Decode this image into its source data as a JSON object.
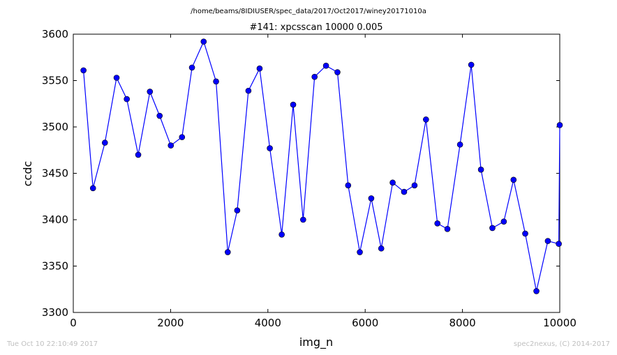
{
  "page": {
    "suptitle": "/home/beams/8IDIUSER/spec_data/2017/Oct2017/winey20171010a",
    "timestamp": "Tue Oct 10 22:10:49 2017",
    "credit": "spec2nexus, (C) 2014-2017"
  },
  "colors": {
    "series": "#0000ff",
    "marker": "#0000ff",
    "marker_edge": "#000000"
  },
  "chart_data": {
    "type": "line",
    "title": "#141: xpcsscan 10000 0.005",
    "xlabel": "img_n",
    "ylabel": "ccdc",
    "xlim": [
      0,
      10000
    ],
    "ylim": [
      3300,
      3600
    ],
    "xticks": [
      0,
      2000,
      4000,
      6000,
      8000,
      10000
    ],
    "yticks": [
      3300,
      3350,
      3400,
      3450,
      3500,
      3550,
      3600
    ],
    "grid": false,
    "markers": "circle",
    "x": [
      210,
      405,
      650,
      890,
      1100,
      1335,
      1575,
      1775,
      2005,
      2235,
      2440,
      2680,
      2935,
      3175,
      3370,
      3600,
      3830,
      4040,
      4285,
      4520,
      4725,
      4960,
      5195,
      5430,
      5650,
      5890,
      6125,
      6330,
      6565,
      6800,
      7015,
      7250,
      7485,
      7690,
      7950,
      8180,
      8380,
      8615,
      8850,
      9050,
      9290,
      9520,
      9755,
      9980,
      10000
    ],
    "y": [
      3561,
      3434,
      3483,
      3553,
      3530,
      3470,
      3538,
      3512,
      3480,
      3489,
      3564,
      3592,
      3549,
      3365,
      3410,
      3539,
      3563,
      3477,
      3384,
      3524,
      3400,
      3554,
      3566,
      3559,
      3437,
      3365,
      3423,
      3369,
      3440,
      3430,
      3437,
      3508,
      3396,
      3390,
      3481,
      3567,
      3454,
      3391,
      3398,
      3443,
      3385,
      3323,
      3377,
      3374,
      3502
    ]
  }
}
